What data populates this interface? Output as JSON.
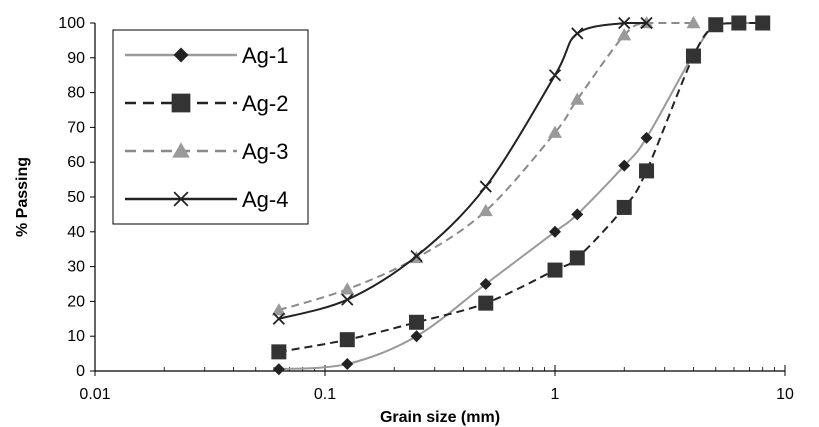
{
  "chart_data": {
    "type": "line",
    "xlabel": "Grain  size (mm)",
    "ylabel": "% Passing",
    "x_scale": "log",
    "xlim": [
      0.01,
      10
    ],
    "ylim": [
      0,
      100
    ],
    "x_ticks": [
      "0.01",
      "0.1",
      "1",
      "10"
    ],
    "y_ticks": [
      "0",
      "10",
      "20",
      "30",
      "40",
      "50",
      "60",
      "70",
      "80",
      "90",
      "100"
    ],
    "grid": false,
    "legend_position": "top-left",
    "series": [
      {
        "name": "Ag-1",
        "color": "#9a9a9a",
        "marker_color": "#222222",
        "dash": "solid",
        "marker": "diamond",
        "x": [
          0.063,
          0.125,
          0.25,
          0.5,
          1.0,
          1.25,
          2.0,
          2.5,
          4.0,
          5.0,
          6.3,
          8.0
        ],
        "y": [
          0.5,
          2,
          10,
          25,
          40,
          45,
          59,
          67,
          91,
          99.5,
          100,
          100
        ]
      },
      {
        "name": "Ag-2",
        "color": "#222222",
        "marker_color": "#333333",
        "dash": "dashed",
        "marker": "square",
        "x": [
          0.063,
          0.125,
          0.25,
          0.5,
          1.0,
          1.25,
          2.0,
          2.5,
          4.0,
          5.0,
          6.3,
          8.0
        ],
        "y": [
          5.5,
          9,
          14,
          19.5,
          29,
          32.5,
          47,
          57.5,
          90.5,
          99.5,
          100,
          100
        ]
      },
      {
        "name": "Ag-3",
        "color": "#8a8a8a",
        "marker_color": "#9a9a9a",
        "dash": "dashed",
        "marker": "triangle",
        "x": [
          0.063,
          0.125,
          0.25,
          0.5,
          1.0,
          1.25,
          2.0,
          2.5,
          4.0
        ],
        "y": [
          17.5,
          23.5,
          32.5,
          46,
          68.5,
          78,
          96.5,
          100,
          100
        ]
      },
      {
        "name": "Ag-4",
        "color": "#222222",
        "marker_color": "#222222",
        "dash": "solid",
        "marker": "x",
        "x": [
          0.063,
          0.125,
          0.25,
          0.5,
          1.0,
          1.25,
          2.0,
          2.5
        ],
        "y": [
          15,
          20.5,
          33,
          53,
          85,
          97,
          100,
          100
        ]
      }
    ]
  }
}
